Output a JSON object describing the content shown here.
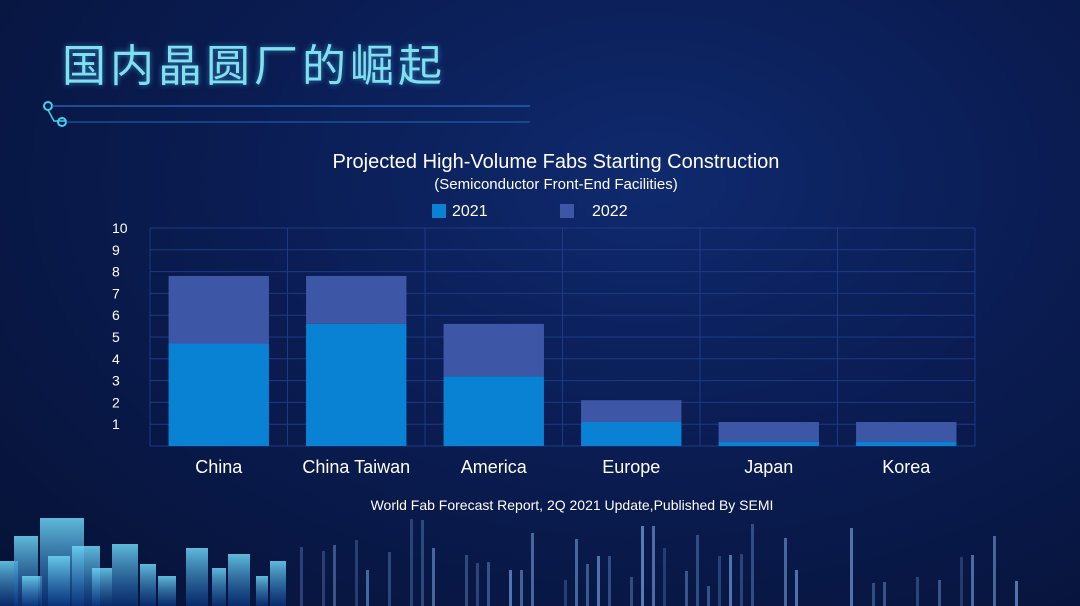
{
  "slide": {
    "title": "国内晶圆厂的崛起"
  },
  "colors": {
    "series_2021": "#0a82d4",
    "series_2022": "#3d57a6",
    "grid": "#1d3a85",
    "title_glow": "#7fe0f0"
  },
  "chart_data": {
    "type": "bar",
    "stacked": true,
    "title": "Projected High-Volume Fabs Starting Construction",
    "subtitle": "(Semiconductor Front-End Facilities)",
    "categories": [
      "China",
      "China Taiwan",
      "America",
      "Europe",
      "Japan",
      "Korea"
    ],
    "series": [
      {
        "name": "2021",
        "values": [
          4.7,
          5.6,
          3.2,
          1.1,
          0.2,
          0.2
        ]
      },
      {
        "name": "2022",
        "values": [
          3.1,
          2.2,
          2.4,
          1.0,
          0.9,
          0.9
        ]
      }
    ],
    "y_ticks": [
      "1",
      "2",
      "3",
      "4",
      "5",
      "6",
      "7",
      "8",
      "9",
      "10"
    ],
    "ylim": [
      0,
      10
    ],
    "grid": true,
    "legend_position": "top",
    "source": "World Fab Forecast Report, 2Q 2021 Update,Published By SEMI"
  }
}
